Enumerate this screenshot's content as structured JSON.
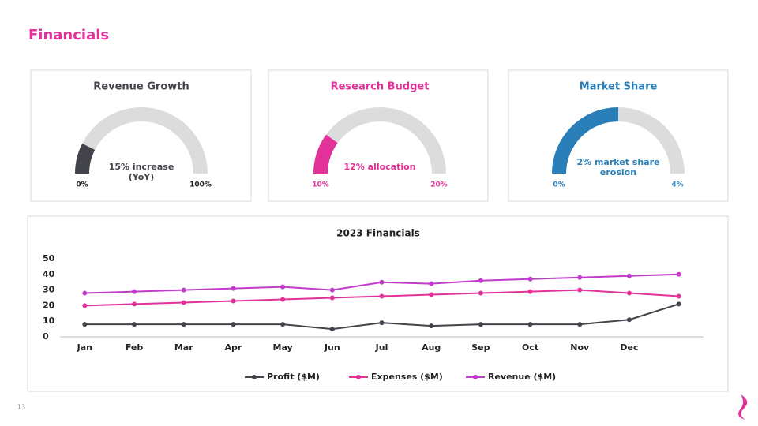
{
  "title": "Financials",
  "page_number": "13",
  "chart_data": [
    {
      "type": "gauge",
      "title": "Revenue Growth",
      "values": [
        15
      ],
      "value_labels": [
        "15% increase (YoY)"
      ],
      "color": "#43434b",
      "ylim": [
        0,
        100
      ],
      "yticks": [
        {
          "value": 0,
          "label": "0%"
        },
        {
          "value": 100,
          "label": "100%"
        }
      ]
    },
    {
      "type": "gauge",
      "title": "Research Budget",
      "values": [
        12
      ],
      "value_labels": [
        "12% allocation"
      ],
      "color": "#e3319a",
      "ylim": [
        10,
        20
      ],
      "yticks": [
        {
          "value": 10,
          "label": "10%"
        },
        {
          "value": 20,
          "label": "20%"
        }
      ]
    },
    {
      "type": "gauge",
      "title": "Market Share",
      "values": [
        2
      ],
      "value_labels": [
        "2% market share erosion"
      ],
      "color": "#2a7fb8",
      "ylim": [
        0,
        4
      ],
      "yticks": [
        {
          "value": 0,
          "label": "0%"
        },
        {
          "value": 4,
          "label": "4%"
        }
      ]
    },
    {
      "type": "line",
      "title": "2023 Financials",
      "categories": [
        "Jan",
        "Feb",
        "Mar",
        "Apr",
        "May",
        "Jun",
        "Jul",
        "Aug",
        "Sep",
        "Oct",
        "Nov",
        "Dec",
        null
      ],
      "series": [
        {
          "name": "Profit ($M)",
          "color": "#43434b",
          "values": [
            8,
            8,
            8,
            8,
            8,
            5,
            9,
            7,
            8,
            8,
            8,
            11,
            21
          ]
        },
        {
          "name": "Expenses ($M)",
          "color": "#e3319a",
          "values": [
            20,
            21,
            22,
            23,
            24,
            25,
            26,
            27,
            28,
            29,
            30,
            28,
            26
          ]
        },
        {
          "name": "Revenue ($M)",
          "color": "#c13ccc",
          "values": [
            28,
            29,
            30,
            31,
            32,
            30,
            35,
            34,
            36,
            37,
            38,
            39,
            40
          ]
        }
      ],
      "ylim": [
        0,
        50
      ],
      "yticks": [
        0,
        10,
        20,
        30,
        40,
        50
      ],
      "grid": false,
      "legend": "bottom"
    }
  ]
}
